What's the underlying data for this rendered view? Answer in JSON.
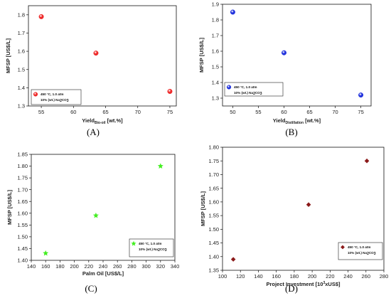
{
  "chart_data": [
    {
      "type": "scatter",
      "panel_label": "(A)",
      "xlabel_main": "Yield",
      "xlabel_sub": "Bio-oil",
      "xlabel_tail": " [wt.%]",
      "ylabel": "MFSP [US$/L]",
      "xlim": [
        53,
        76
      ],
      "ylim": [
        1.3,
        1.85
      ],
      "xticks": [
        55,
        60,
        65,
        70,
        75
      ],
      "yticks": [
        1.3,
        1.4,
        1.5,
        1.6,
        1.7,
        1.8
      ],
      "ytick_labels": [
        "1.3",
        "1.4",
        "1.5",
        "1.6",
        "1.7",
        "1.8"
      ],
      "marker": "circle",
      "color": "#ee2a2a",
      "series": [
        {
          "x": [
            55,
            63.5,
            75
          ],
          "y": [
            1.79,
            1.59,
            1.38
          ]
        }
      ],
      "legend": {
        "line1": "450 °C, 1.0 atm",
        "line2": "10% (wt.) Na",
        "line2_sub": "2",
        "line2_tail": "CO",
        "line2_sub2": "3"
      }
    },
    {
      "type": "scatter",
      "panel_label": "(B)",
      "xlabel_main": "Yield",
      "xlabel_sub": "Distillation",
      "xlabel_tail": " [wt.%]",
      "ylabel": "MFSP [US$/L]",
      "xlim": [
        48,
        77
      ],
      "ylim": [
        1.25,
        1.9
      ],
      "xticks": [
        50,
        55,
        60,
        65,
        70,
        75
      ],
      "yticks": [
        1.3,
        1.4,
        1.5,
        1.6,
        1.7,
        1.8,
        1.9
      ],
      "ytick_labels": [
        "1.3",
        "1.4",
        "1.5",
        "1.6",
        "1.7",
        "1.8",
        "1.9"
      ],
      "marker": "circle",
      "color": "#2233dd",
      "series": [
        {
          "x": [
            50,
            60,
            75
          ],
          "y": [
            1.85,
            1.59,
            1.32
          ]
        }
      ],
      "legend": {
        "line1": "450 °C, 1.0 atm",
        "line2": "10% (wt.) Na",
        "line2_sub": "2",
        "line2_tail": "CO",
        "line2_sub2": "3"
      }
    },
    {
      "type": "scatter",
      "panel_label": "(C)",
      "xlabel_main": "Palm Oil [US$/L]",
      "xlabel_sub": "",
      "xlabel_tail": "",
      "ylabel": "MFSP [US$/L]",
      "xlim": [
        140,
        340
      ],
      "ylim": [
        1.4,
        1.85
      ],
      "xticks": [
        140,
        160,
        180,
        200,
        220,
        240,
        260,
        280,
        300,
        320,
        340
      ],
      "yticks": [
        1.4,
        1.45,
        1.5,
        1.55,
        1.6,
        1.65,
        1.7,
        1.75,
        1.8,
        1.85
      ],
      "ytick_labels": [
        "1.40",
        "1.45",
        "1.50",
        "1.55",
        "1.60",
        "1.65",
        "1.70",
        "1.75",
        "1.80",
        "1.85"
      ],
      "marker": "star",
      "color": "#44ee22",
      "series": [
        {
          "x": [
            160,
            230,
            320
          ],
          "y": [
            1.43,
            1.59,
            1.8
          ]
        }
      ],
      "legend": {
        "line1": "450 °C, 1.0 atm",
        "line2": "10% (wt.) Na",
        "line2_sub": "2",
        "line2_tail": "CO",
        "line2_sub2": "3"
      }
    },
    {
      "type": "scatter",
      "panel_label": "(D)",
      "xlabel_main": "Project Investment [10",
      "xlabel_sup": "3",
      "xlabel_tail": "xUS$]",
      "ylabel": "MFSP [US$/L]",
      "xlim": [
        100,
        280
      ],
      "ylim": [
        1.35,
        1.8
      ],
      "xticks": [
        100,
        120,
        140,
        160,
        180,
        200,
        220,
        240,
        260,
        280
      ],
      "yticks": [
        1.35,
        1.4,
        1.45,
        1.5,
        1.55,
        1.6,
        1.65,
        1.7,
        1.75,
        1.8
      ],
      "ytick_labels": [
        "1.35",
        "1.40",
        "1.45",
        "1.50",
        "1.55",
        "1.60",
        "1.65",
        "1.70",
        "1.75",
        "1.80"
      ],
      "marker": "diamond",
      "color": "#8b1a1a",
      "series": [
        {
          "x": [
            112,
            196,
            261
          ],
          "y": [
            1.39,
            1.59,
            1.75
          ]
        }
      ],
      "legend": {
        "line1": "450 °C, 1.0 atm",
        "line2": "10% (wt.) Na",
        "line2_sub": "2",
        "line2_tail": "CO",
        "line2_sub2": "3"
      }
    }
  ]
}
